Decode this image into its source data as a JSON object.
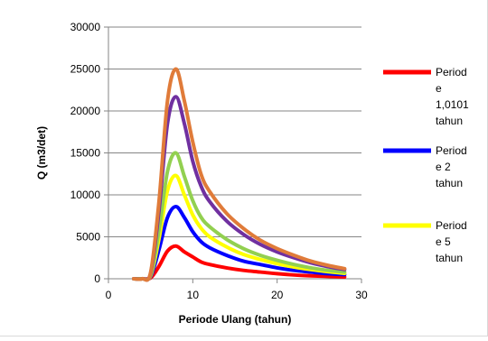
{
  "chart_data": {
    "type": "line",
    "xlabel": "Periode Ulang (tahun)",
    "ylabel": "Q (m3/det)",
    "xlim": [
      0,
      30
    ],
    "ylim": [
      0,
      30000
    ],
    "x_ticks": [
      "0",
      "10",
      "20",
      "30"
    ],
    "y_ticks": [
      "0",
      "5000",
      "10000",
      "15000",
      "20000",
      "25000",
      "30000"
    ],
    "grid": "horizontal",
    "legend_position": "right",
    "legend_lines": [
      [
        "Period",
        "e",
        "1,0101",
        "tahun"
      ],
      [
        "Period",
        "e 2",
        "tahun"
      ],
      [
        "Period",
        "e 5",
        "tahun"
      ]
    ],
    "x": [
      3,
      4,
      5,
      6,
      7,
      8,
      9,
      10,
      11,
      12,
      14,
      16,
      18,
      20,
      22,
      24,
      26,
      28
    ],
    "series": [
      {
        "name": "Periode 1,0101 tahun",
        "color": "#ff0000",
        "values": [
          0,
          0,
          100,
          1500,
          3300,
          3900,
          3200,
          2600,
          2000,
          1700,
          1300,
          1000,
          800,
          600,
          450,
          350,
          280,
          220
        ]
      },
      {
        "name": "Periode 2 tahun",
        "color": "#0000ff",
        "values": [
          0,
          0,
          250,
          3500,
          7300,
          8600,
          7300,
          5600,
          4400,
          3700,
          2800,
          2100,
          1700,
          1300,
          1000,
          800,
          600,
          500
        ]
      },
      {
        "name": "Periode 5 tahun",
        "color": "#ffff00",
        "values": [
          0,
          0,
          350,
          4800,
          10500,
          12300,
          10000,
          7600,
          6000,
          5000,
          3800,
          2900,
          2300,
          1800,
          1400,
          1100,
          850,
          650
        ]
      },
      {
        "name": "",
        "color": "#92d050",
        "values": [
          0,
          0,
          450,
          5800,
          12800,
          15000,
          12200,
          9300,
          7300,
          6200,
          4700,
          3600,
          2800,
          2200,
          1700,
          1300,
          1000,
          800
        ]
      },
      {
        "name": "",
        "color": "#7030a0",
        "values": [
          0,
          0,
          650,
          8200,
          18500,
          21700,
          18500,
          14000,
          11000,
          9200,
          6900,
          5300,
          4100,
          3200,
          2500,
          1900,
          1450,
          1100
        ]
      },
      {
        "name": "",
        "color": "#e07b39",
        "values": [
          0,
          0,
          750,
          9300,
          21200,
          25000,
          21200,
          16300,
          12400,
          10400,
          7800,
          6000,
          4600,
          3600,
          2800,
          2100,
          1600,
          1200
        ]
      }
    ]
  }
}
